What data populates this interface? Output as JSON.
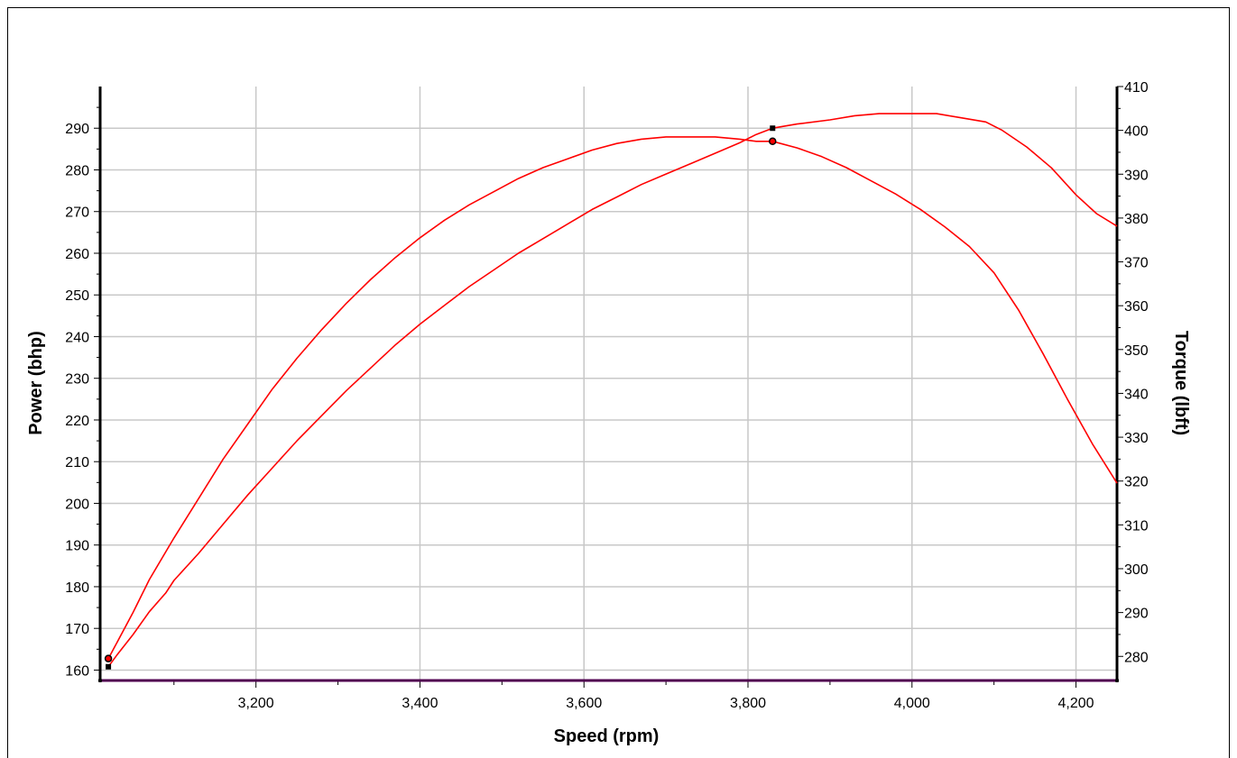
{
  "chart_data": {
    "type": "line",
    "xlabel": "Speed (rpm)",
    "ylabel_left": "Power (bhp)",
    "ylabel_right": "Torque (lbft)",
    "xlim": [
      3010,
      4250
    ],
    "ylim_left": [
      157.5,
      300
    ],
    "ylim_right": [
      274.5,
      410
    ],
    "x_ticks": [
      3200,
      3400,
      3600,
      3800,
      4000,
      4200
    ],
    "x_tick_labels": [
      "3,200",
      "3,400",
      "3,600",
      "3,800",
      "4,000",
      "4,200"
    ],
    "y_left_ticks": [
      160,
      170,
      180,
      190,
      200,
      210,
      220,
      230,
      240,
      250,
      260,
      270,
      280,
      290
    ],
    "y_right_ticks": [
      280,
      290,
      300,
      310,
      320,
      330,
      340,
      350,
      360,
      370,
      380,
      390,
      400,
      410
    ],
    "grid": true,
    "line_color": "#ff0000",
    "series": [
      {
        "axis": "left",
        "marker": "square",
        "marker_at": [
          [
            3020,
            160.8
          ],
          [
            3830,
            290
          ]
        ],
        "points": [
          [
            3020,
            160.8
          ],
          [
            3030,
            163.5
          ],
          [
            3050,
            168.5
          ],
          [
            3070,
            174
          ],
          [
            3090,
            178.5
          ],
          [
            3100,
            181.5
          ],
          [
            3130,
            188
          ],
          [
            3160,
            195
          ],
          [
            3190,
            202
          ],
          [
            3220,
            208.5
          ],
          [
            3250,
            215
          ],
          [
            3280,
            221
          ],
          [
            3310,
            227
          ],
          [
            3340,
            232.5
          ],
          [
            3370,
            238
          ],
          [
            3400,
            243
          ],
          [
            3430,
            247.5
          ],
          [
            3460,
            252
          ],
          [
            3490,
            256
          ],
          [
            3520,
            260
          ],
          [
            3550,
            263.5
          ],
          [
            3580,
            267
          ],
          [
            3610,
            270.5
          ],
          [
            3640,
            273.5
          ],
          [
            3670,
            276.5
          ],
          [
            3700,
            279
          ],
          [
            3730,
            281.5
          ],
          [
            3760,
            284
          ],
          [
            3790,
            286.5
          ],
          [
            3810,
            288.5
          ],
          [
            3830,
            290
          ],
          [
            3860,
            291
          ],
          [
            3900,
            292
          ],
          [
            3930,
            293
          ],
          [
            3960,
            293.5
          ],
          [
            4000,
            293.5
          ],
          [
            4030,
            293.5
          ],
          [
            4060,
            292.5
          ],
          [
            4090,
            291.5
          ],
          [
            4110,
            289.5
          ],
          [
            4140,
            285.5
          ],
          [
            4170,
            280.5
          ],
          [
            4200,
            274
          ],
          [
            4225,
            269.5
          ],
          [
            4250,
            266.5
          ]
        ]
      },
      {
        "axis": "right",
        "marker": "circle",
        "marker_at": [
          [
            3020,
            279.5
          ],
          [
            3830,
            397.5
          ]
        ],
        "points": [
          [
            3020,
            279.5
          ],
          [
            3030,
            283
          ],
          [
            3050,
            290
          ],
          [
            3070,
            297.5
          ],
          [
            3100,
            307
          ],
          [
            3130,
            316
          ],
          [
            3160,
            325
          ],
          [
            3190,
            333
          ],
          [
            3220,
            341
          ],
          [
            3250,
            348
          ],
          [
            3280,
            354.5
          ],
          [
            3310,
            360.5
          ],
          [
            3340,
            366
          ],
          [
            3370,
            371
          ],
          [
            3400,
            375.5
          ],
          [
            3430,
            379.5
          ],
          [
            3460,
            383
          ],
          [
            3490,
            386
          ],
          [
            3520,
            389
          ],
          [
            3550,
            391.5
          ],
          [
            3580,
            393.5
          ],
          [
            3610,
            395.5
          ],
          [
            3640,
            397
          ],
          [
            3670,
            398
          ],
          [
            3700,
            398.5
          ],
          [
            3730,
            398.5
          ],
          [
            3760,
            398.5
          ],
          [
            3790,
            398
          ],
          [
            3810,
            397.5
          ],
          [
            3830,
            397.5
          ],
          [
            3860,
            396
          ],
          [
            3890,
            394
          ],
          [
            3920,
            391.5
          ],
          [
            3950,
            388.5
          ],
          [
            3980,
            385.5
          ],
          [
            4010,
            382
          ],
          [
            4040,
            378
          ],
          [
            4070,
            373.5
          ],
          [
            4100,
            367.5
          ],
          [
            4130,
            359
          ],
          [
            4160,
            349
          ],
          [
            4190,
            338.5
          ],
          [
            4220,
            328.5
          ],
          [
            4250,
            319.5
          ]
        ]
      }
    ]
  }
}
